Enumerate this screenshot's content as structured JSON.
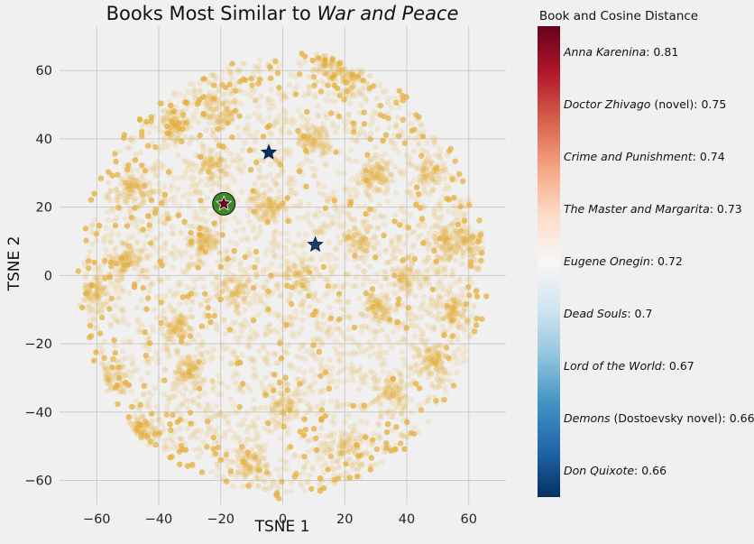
{
  "chart_data": {
    "type": "scatter",
    "title_prefix": "Books Most Similar to ",
    "title_italic": "War and Peace",
    "xlabel": "TSNE 1",
    "ylabel": "TSNE 2",
    "xlim": [
      -72,
      72
    ],
    "ylim": [
      -67,
      73
    ],
    "x_ticks": [
      -60,
      -40,
      -20,
      0,
      20,
      40,
      60
    ],
    "y_ticks": [
      -60,
      -40,
      -20,
      0,
      20,
      40,
      60
    ],
    "grid": true,
    "background_color": "#e5ae38",
    "background_note": "dense cloud of several thousand low-opacity book embedding points filling roughly a disk of radius ~65 centred near (0,0), with denser clusters around the edge",
    "query_book": {
      "name": "War and Peace",
      "x": -19,
      "y": 21,
      "marker": "star inside green circle",
      "color": "#67001f",
      "circle_color": "#3a8a2a"
    },
    "similar_books": [
      {
        "name": "Anna Karenina",
        "x": -19,
        "y": 21,
        "distance": "0.81",
        "color": "#67001f"
      },
      {
        "name": "Doctor Zhivago",
        "x": -4.5,
        "y": 36,
        "distance": "0.75",
        "color": "#053061"
      },
      {
        "name": "Demons (Dostoevsky novel)",
        "x": 10.5,
        "y": 9,
        "distance": "0.66",
        "color": "#14436f"
      }
    ],
    "colorbar": {
      "title": "Book and Cosine Distance",
      "colormap": "RdBu",
      "entries": [
        {
          "italic": "Anna Karenina",
          "rest": ": 0.81"
        },
        {
          "italic": "Doctor Zhivago",
          "rest": " (novel): 0.75"
        },
        {
          "italic": "Crime and Punishment",
          "rest": ": 0.74"
        },
        {
          "italic": "The Master and Margarita",
          "rest": ": 0.73"
        },
        {
          "italic": "Eugene Onegin",
          "rest": ": 0.72"
        },
        {
          "italic": "Dead Souls",
          "rest": ": 0.7"
        },
        {
          "italic": "Lord of the World",
          "rest": ": 0.67"
        },
        {
          "italic": "Demons",
          "rest": " (Dostoevsky novel): 0.66"
        },
        {
          "italic": "Don Quixote",
          "rest": ": 0.66"
        }
      ]
    }
  }
}
